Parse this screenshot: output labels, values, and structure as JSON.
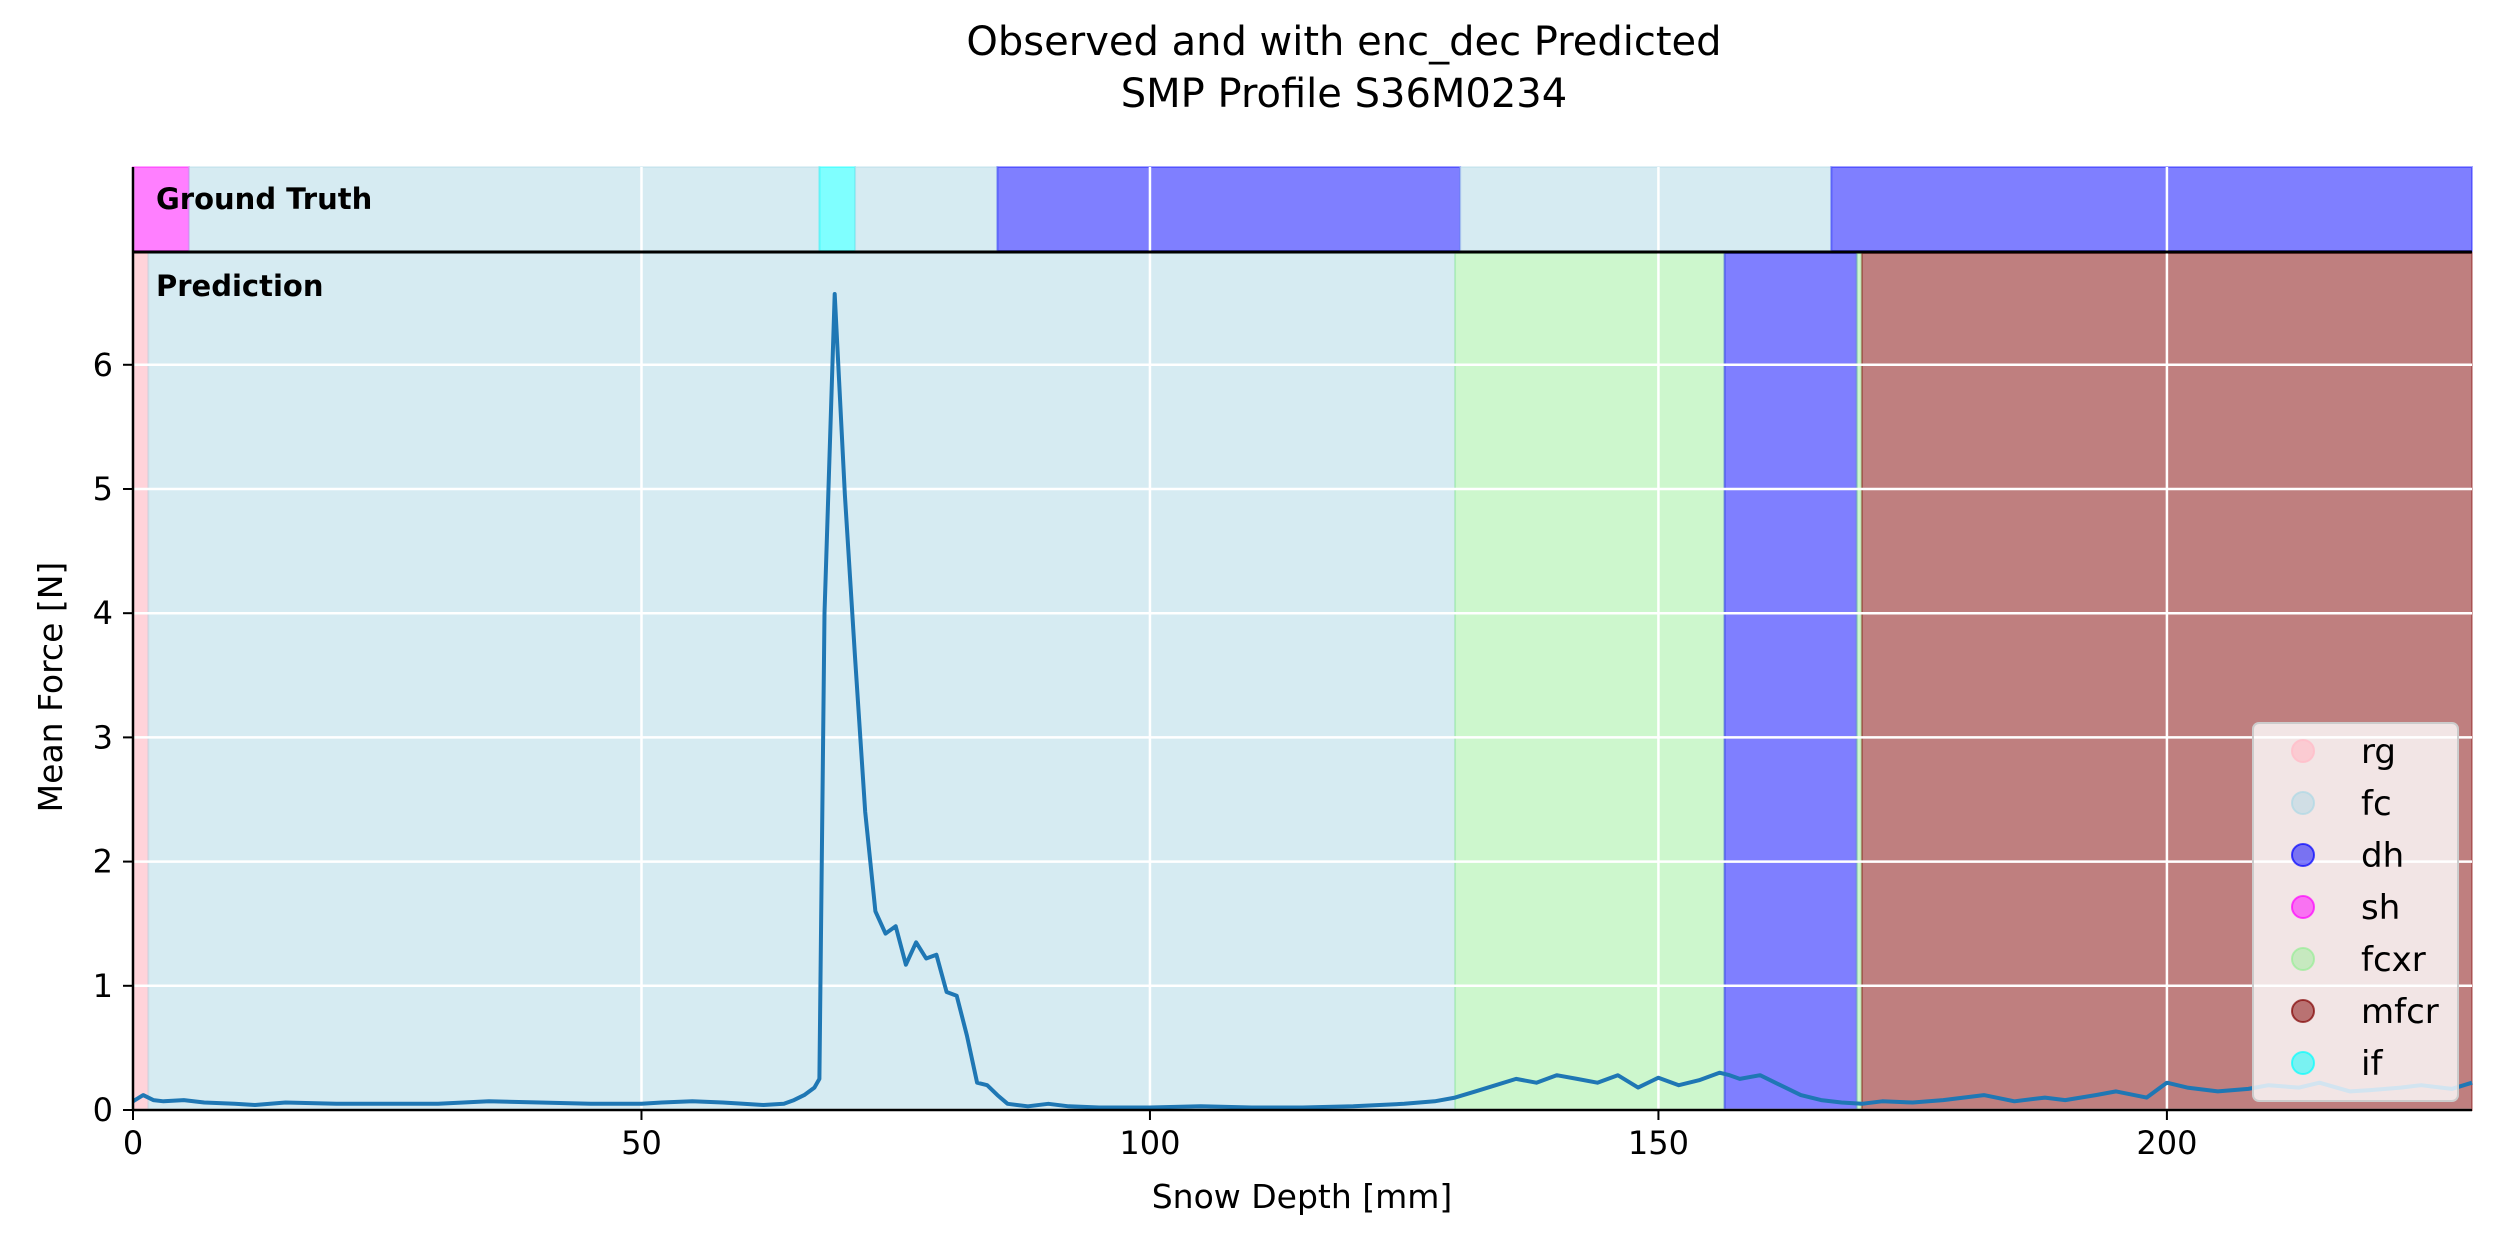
{
  "chart_data": {
    "type": "line",
    "title_line1": "Observed and with enc_dec Predicted",
    "title_line2": "SMP Profile S36M0234",
    "xlabel": "Snow Depth [mm]",
    "ylabel": "Mean Force [N]",
    "xlim": [
      0,
      230
    ],
    "ylim": [
      0,
      6.9
    ],
    "xticks": [
      0,
      50,
      100,
      150,
      200
    ],
    "yticks": [
      0,
      1,
      2,
      3,
      4,
      5,
      6
    ],
    "grid": true,
    "legend_position": "lower-right",
    "panel_labels": {
      "ground_truth": "Ground Truth",
      "prediction": "Prediction"
    },
    "classes": [
      {
        "name": "rg",
        "color": "#ffc0cb",
        "alpha": 0.7
      },
      {
        "name": "fc",
        "color": "#add8e6",
        "alpha": 0.5
      },
      {
        "name": "dh",
        "color": "#0000ff",
        "alpha": 0.5
      },
      {
        "name": "sh",
        "color": "#ff00ff",
        "alpha": 0.5
      },
      {
        "name": "fcxr",
        "color": "#90ee90",
        "alpha": 0.45
      },
      {
        "name": "mfcr",
        "color": "#800000",
        "alpha": 0.5
      },
      {
        "name": "if",
        "color": "#00ffff",
        "alpha": 0.5
      }
    ],
    "ground_truth": [
      {
        "label": "sh",
        "start": 0,
        "end": 5.5
      },
      {
        "label": "fc",
        "start": 5.5,
        "end": 67.5
      },
      {
        "label": "if",
        "start": 67.5,
        "end": 71
      },
      {
        "label": "fc",
        "start": 71,
        "end": 85
      },
      {
        "label": "dh",
        "start": 85,
        "end": 130.5
      },
      {
        "label": "fc",
        "start": 130.5,
        "end": 167
      },
      {
        "label": "dh",
        "start": 167,
        "end": 230
      }
    ],
    "prediction": [
      {
        "label": "rg",
        "start": 0,
        "end": 1.5
      },
      {
        "label": "fc",
        "start": 1.5,
        "end": 130
      },
      {
        "label": "fcxr",
        "start": 130,
        "end": 156.5
      },
      {
        "label": "dh",
        "start": 156.5,
        "end": 169.5
      },
      {
        "label": "fcxr",
        "start": 169.5,
        "end": 170
      },
      {
        "label": "mfcr",
        "start": 170,
        "end": 230
      }
    ],
    "series": [
      {
        "color": "#1f77b4",
        "x": [
          0,
          1,
          2,
          3,
          5,
          7,
          10,
          12,
          15,
          20,
          25,
          30,
          35,
          40,
          45,
          50,
          52,
          55,
          58,
          60,
          62,
          64,
          65,
          66,
          67,
          67.5,
          68,
          69,
          70,
          71,
          72,
          73,
          74,
          75,
          76,
          77,
          78,
          79,
          80,
          81,
          82,
          83,
          84,
          85,
          86,
          88,
          90,
          92,
          95,
          100,
          105,
          110,
          115,
          120,
          125,
          128,
          130,
          132,
          134,
          136,
          138,
          140,
          142,
          144,
          146,
          148,
          150,
          152,
          154,
          156,
          157,
          158,
          160,
          162,
          164,
          166,
          168,
          170,
          172,
          175,
          178,
          180,
          182,
          185,
          188,
          190,
          193,
          195,
          198,
          200,
          202,
          205,
          208,
          210,
          213,
          215,
          218,
          220,
          223,
          225,
          228,
          230
        ],
        "y": [
          0.07,
          0.12,
          0.08,
          0.07,
          0.08,
          0.06,
          0.05,
          0.04,
          0.06,
          0.05,
          0.05,
          0.05,
          0.07,
          0.06,
          0.05,
          0.05,
          0.06,
          0.07,
          0.06,
          0.05,
          0.04,
          0.05,
          0.08,
          0.12,
          0.18,
          0.25,
          4.0,
          6.57,
          4.95,
          3.65,
          2.4,
          1.6,
          1.42,
          1.48,
          1.17,
          1.35,
          1.22,
          1.25,
          0.95,
          0.92,
          0.6,
          0.22,
          0.2,
          0.12,
          0.05,
          0.03,
          0.05,
          0.03,
          0.02,
          0.02,
          0.03,
          0.02,
          0.02,
          0.03,
          0.05,
          0.07,
          0.1,
          0.15,
          0.2,
          0.25,
          0.22,
          0.28,
          0.25,
          0.22,
          0.28,
          0.18,
          0.26,
          0.2,
          0.24,
          0.3,
          0.28,
          0.25,
          0.28,
          0.2,
          0.12,
          0.08,
          0.06,
          0.05,
          0.07,
          0.06,
          0.08,
          0.1,
          0.12,
          0.07,
          0.1,
          0.08,
          0.12,
          0.15,
          0.1,
          0.22,
          0.18,
          0.15,
          0.17,
          0.2,
          0.18,
          0.22,
          0.15,
          0.16,
          0.18,
          0.2,
          0.17,
          0.22
        ]
      }
    ]
  }
}
